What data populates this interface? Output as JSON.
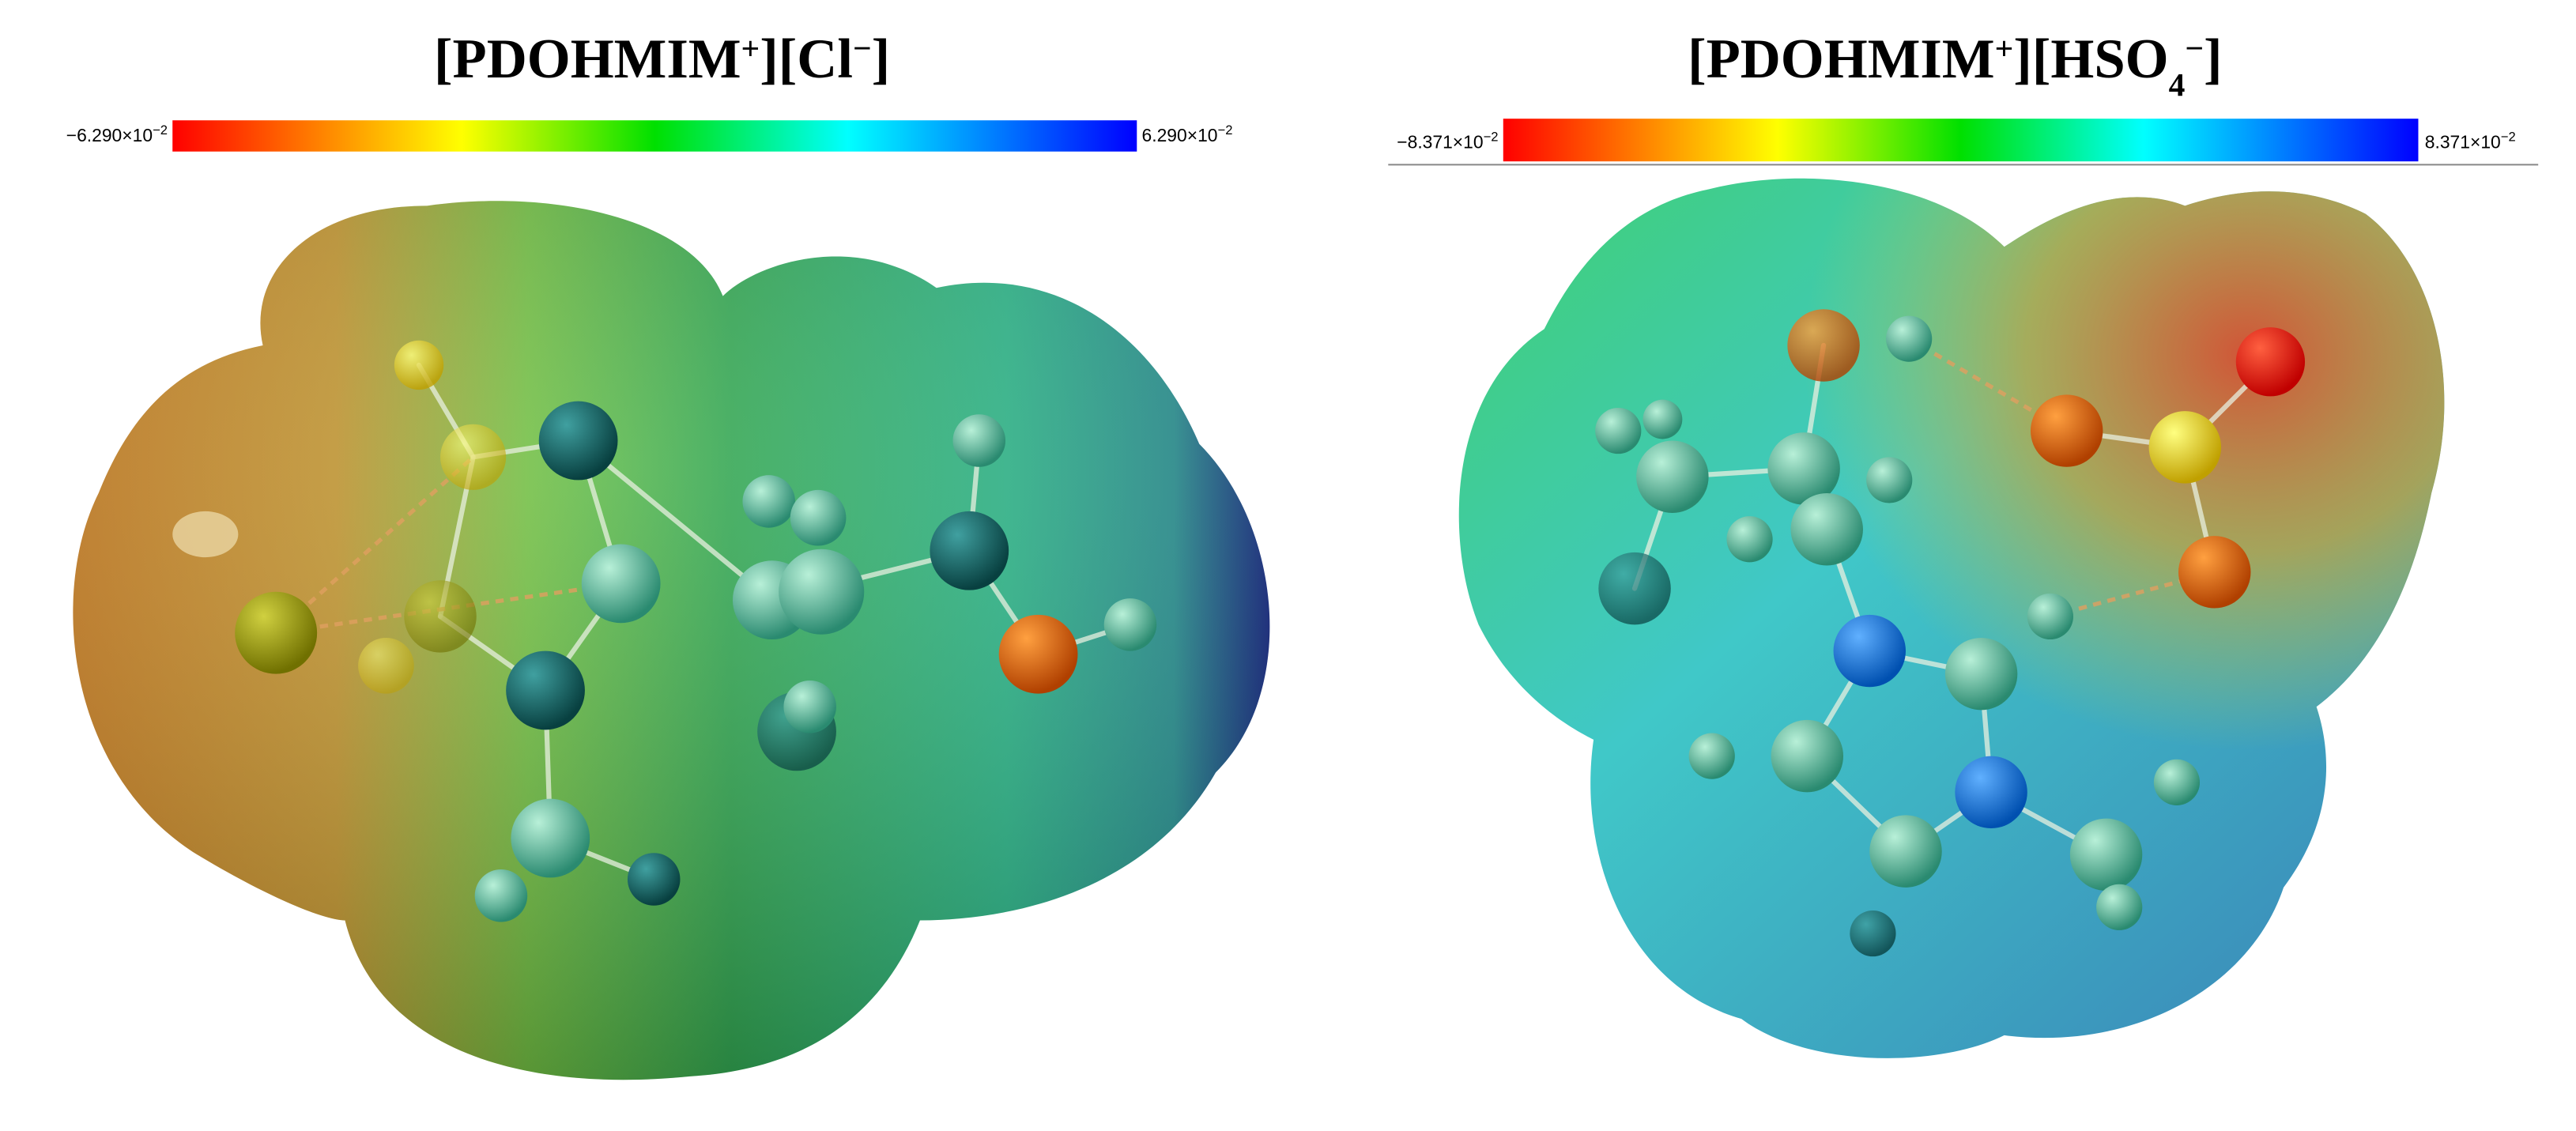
{
  "panels": [
    {
      "title": [
        {
          "text": "[PDOHMIM"
        },
        {
          "text": "+",
          "pos": "super"
        },
        {
          "text": "][Cl"
        },
        {
          "text": "−",
          "pos": "super"
        },
        {
          "text": "]"
        }
      ],
      "scale_min": {
        "text": "−6.290×10",
        "exp": "−2"
      },
      "scale_max": {
        "text": "6.290×10",
        "exp": "−2"
      }
    },
    {
      "title": [
        {
          "text": "[PDOHMIM"
        },
        {
          "text": "+",
          "pos": "super"
        },
        {
          "text": "][HSO"
        },
        {
          "text": "4",
          "pos": "sub"
        },
        {
          "text": "−",
          "pos": "super"
        },
        {
          "text": "]"
        }
      ],
      "scale_min": {
        "text": "−8.371×10",
        "exp": "−2"
      },
      "scale_max": {
        "text": "8.371×10",
        "exp": "−2"
      }
    }
  ]
}
